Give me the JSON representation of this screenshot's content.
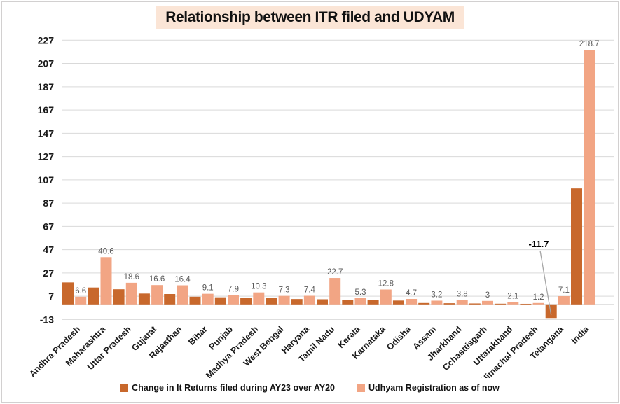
{
  "title": "Relationship between ITR filed and UDYAM",
  "colors": {
    "itr_bar": "#C8682C",
    "udyam_bar": "#F2A584",
    "title_background": "#FBE5D6",
    "gridline": "#D9D9D9",
    "data_label": "#595959",
    "leader_line": "#A6A6A6",
    "axis_text": "#1a1a1a"
  },
  "chart_data": {
    "type": "bar",
    "title": "Relationship between ITR filed and UDYAM",
    "categories": [
      "Andhra Pradesh",
      "Maharashtra",
      "Uttar Pradesh",
      "Gujarat",
      "Rajasthan",
      "Bihar",
      "Punjab",
      "Madhya Pradesh",
      "West Bengal",
      "Haryana",
      "Tamil Nadu",
      "Kerala",
      "Karnataka",
      "Odisha",
      "Assam",
      "Jharkhand",
      "Cchasttisgarh",
      "Uttarakhand",
      "Himachal Pradesh",
      "Telangana",
      "India"
    ],
    "series": [
      {
        "name": "Change in It Returns filed during AY23 over AY20",
        "color": "#C8682C",
        "values": [
          18.9,
          14.5,
          13.0,
          9.3,
          8.9,
          6.6,
          6.1,
          5.6,
          5.3,
          4.6,
          4.4,
          4.0,
          3.6,
          3.3,
          1.2,
          1.0,
          0.8,
          0.6,
          0.5,
          -11.7,
          99.6
        ]
      },
      {
        "name": "Udhyam Registration as of now",
        "color": "#F2A584",
        "values": [
          6.6,
          40.6,
          18.6,
          16.6,
          16.4,
          9.1,
          7.9,
          10.3,
          7.3,
          7.4,
          22.7,
          5.3,
          12.8,
          4.7,
          3.2,
          3.8,
          3,
          2.1,
          1.2,
          7.1,
          218.7
        ],
        "data_labels": [
          "6.6",
          "40.6",
          "18.6",
          "16.6",
          "16.4",
          "9.1",
          "7.9",
          "10.3",
          "7.3",
          "7.4",
          "22.7",
          "5.3",
          "12.8",
          "4.7",
          "3.2",
          "3.8",
          "3",
          "2.1",
          "1.2",
          "7.1",
          "218.7"
        ]
      }
    ],
    "yticks": [
      -13,
      7,
      27,
      47,
      67,
      87,
      107,
      127,
      147,
      167,
      187,
      207,
      227
    ],
    "ylim": [
      -13,
      227
    ],
    "grid": true,
    "legend_position": "bottom",
    "annotations": [
      {
        "text": "-11.7",
        "category": "Telangana",
        "series": "Change in It Returns filed during AY23 over AY20"
      }
    ]
  },
  "legend": {
    "items": [
      {
        "label": "Change in It Returns filed during AY23 over AY20"
      },
      {
        "label": "Udhyam Registration as of now"
      }
    ]
  }
}
